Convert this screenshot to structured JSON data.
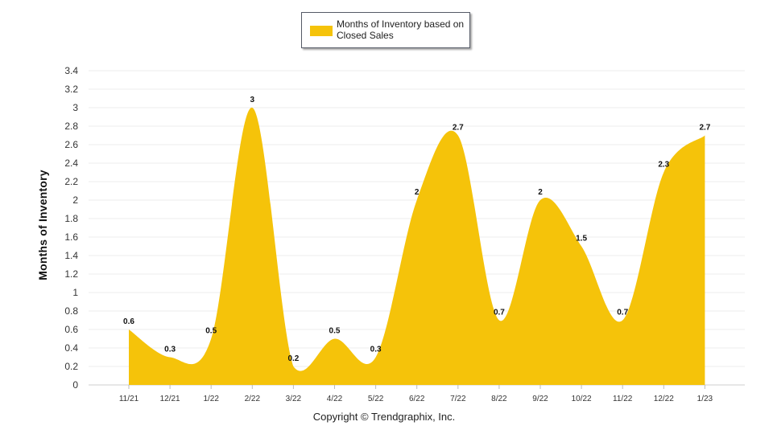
{
  "chart_data": {
    "type": "area",
    "categories": [
      "11/21",
      "12/21",
      "1/22",
      "2/22",
      "3/22",
      "4/22",
      "5/22",
      "6/22",
      "7/22",
      "8/22",
      "9/22",
      "10/22",
      "11/22",
      "12/22",
      "1/23"
    ],
    "series": [
      {
        "name": "Months of Inventory based on Closed Sales",
        "values": [
          0.6,
          0.3,
          0.5,
          3,
          0.2,
          0.5,
          0.3,
          2,
          2.7,
          0.7,
          2,
          1.5,
          0.7,
          2.3,
          2.7
        ],
        "color": "#f5c30a"
      }
    ],
    "y_ticks": [
      "0",
      "0.2",
      "0.4",
      "0.6",
      "0.8",
      "1",
      "1.2",
      "1.4",
      "1.6",
      "1.8",
      "2",
      "2.2",
      "2.4",
      "2.6",
      "2.8",
      "3",
      "3.2",
      "3.4"
    ],
    "ylim": [
      0,
      3.4
    ],
    "ylabel": "Months of Inventory",
    "legend": {
      "label": "Months of Inventory based on Closed Sales",
      "position": "top-center"
    },
    "grid": true,
    "smooth": true
  },
  "footer": {
    "copyright": "Copyright © Trendgraphix, Inc."
  }
}
